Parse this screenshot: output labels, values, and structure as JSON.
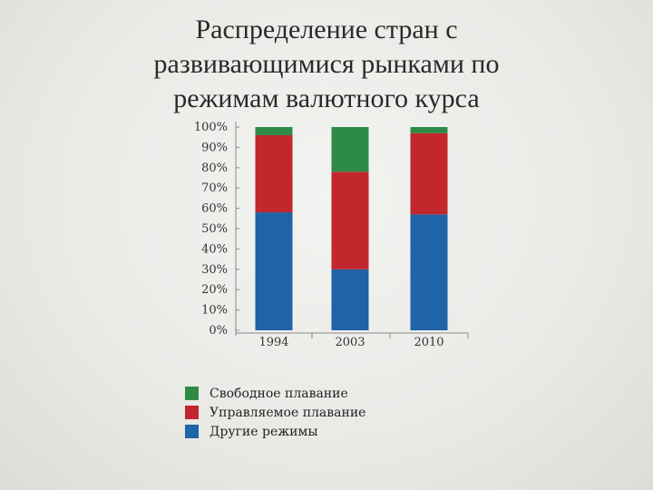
{
  "title_lines": [
    "Распределение стран с",
    "развивающимися рынками по",
    "режимам валютного курса"
  ],
  "chart_data": {
    "type": "bar",
    "stacked": true,
    "categories": [
      "1994",
      "2003",
      "2010"
    ],
    "series": [
      {
        "name": "Другие режимы",
        "color": "#1e64a6",
        "values": [
          58,
          30,
          57
        ]
      },
      {
        "name": "Управляемое плавание",
        "color": "#c1272d",
        "values": [
          38,
          48,
          40
        ]
      },
      {
        "name": "Свободное плавание",
        "color": "#2e8b45",
        "values": [
          4,
          22,
          3
        ]
      }
    ],
    "y_ticks": [
      "0%",
      "10%",
      "20%",
      "30%",
      "40%",
      "50%",
      "60%",
      "70%",
      "80%",
      "90%",
      "100%"
    ],
    "ylim": [
      0,
      100
    ],
    "grid": false,
    "legend_position": "bottom-left"
  },
  "legend": [
    {
      "label": "Свободное плавание",
      "color": "#2e8b45"
    },
    {
      "label": "Управляемое плавание",
      "color": "#c1272d"
    },
    {
      "label": "Другие режимы",
      "color": "#1e64a6"
    }
  ]
}
